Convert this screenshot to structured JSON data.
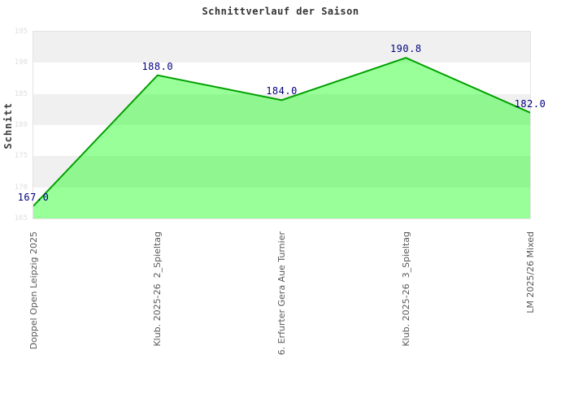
{
  "title": "Schnittverlauf der Saison",
  "chart_data": {
    "type": "area",
    "title": "Schnittverlauf der Saison",
    "xlabel": "",
    "ylabel": "Schnitt",
    "categories": [
      "Doppel Open Leipzig 2025",
      "Klub. 2025-26  2_Spieltag",
      "6. Erfurter Gera Aue Turnier",
      "Klub. 2025-26  3_Spieltag",
      "LM 2025/26 Mixed"
    ],
    "values": [
      167.0,
      188.0,
      184.0,
      190.8,
      182.0
    ],
    "value_labels": [
      "167.0",
      "188.0",
      "184.0",
      "190.8",
      "182.0"
    ],
    "ylim": [
      165,
      195
    ],
    "ytick_step": 5,
    "yticks": [
      "195",
      "190",
      "185",
      "180",
      "175",
      "170",
      "165"
    ],
    "grid": "alternating-horizontal-bands",
    "legend": "none",
    "colors": {
      "area_fill": "rgba(0,255,0,0.4)",
      "line": "#00a000",
      "value_label": "#000080",
      "band_gray": "#f0f0f0",
      "band_white": "#ffffff",
      "ytick_text": "#dedede",
      "xlabel_text": "#585858",
      "title_text": "#333333"
    }
  }
}
